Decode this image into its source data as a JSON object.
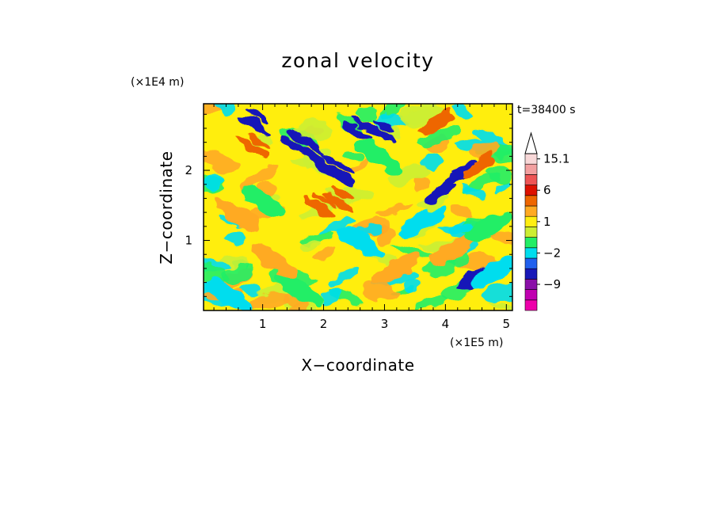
{
  "chart_data": {
    "type": "heatmap",
    "title": "zonal velocity",
    "time_label": "t=38400 s",
    "xlabel": "X−coordinate",
    "ylabel": "Z−coordinate",
    "x_unit": "(×1E5 m)",
    "y_unit": "(×1E4 m)",
    "xlim": [
      0.03,
      5.1
    ],
    "ylim": [
      0.0,
      2.95
    ],
    "x_ticks": [
      "1",
      "2",
      "3",
      "4",
      "5"
    ],
    "y_ticks": [
      "1",
      "2"
    ],
    "colorbar": {
      "levels": [
        {
          "value": -15,
          "color": "#ee00aa"
        },
        {
          "value": -12,
          "color": "#c000b0"
        },
        {
          "value": -9,
          "color": "#8a10a8"
        },
        {
          "value": -6,
          "color": "#1818b8"
        },
        {
          "value": -3,
          "color": "#2060ee"
        },
        {
          "value": -2,
          "color": "#00ddee"
        },
        {
          "value": -1,
          "color": "#22ee66"
        },
        {
          "value": 0,
          "color": "#ccee33"
        },
        {
          "value": 1,
          "color": "#ffee11"
        },
        {
          "value": 2,
          "color": "#ffaa22"
        },
        {
          "value": 4,
          "color": "#ee6600"
        },
        {
          "value": 6,
          "color": "#dd1100"
        },
        {
          "value": 9,
          "color": "#ee5555"
        },
        {
          "value": 12,
          "color": "#f3a0a0"
        },
        {
          "value": 15.1,
          "color": "#f8d8d8"
        }
      ],
      "tick_labels": [
        "15.1",
        "6",
        "1",
        "−2",
        "−9"
      ]
    },
    "features": [
      {
        "x": 1.53,
        "z": 2.35,
        "u": -6
      },
      {
        "x": 1.78,
        "z": 2.22,
        "u": -6
      },
      {
        "x": 2.06,
        "z": 2.02,
        "u": -6
      },
      {
        "x": 2.28,
        "z": 1.92,
        "u": -6
      },
      {
        "x": 2.55,
        "z": 2.55,
        "u": -6
      },
      {
        "x": 2.9,
        "z": 2.55,
        "u": -6
      },
      {
        "x": 3.9,
        "z": 1.65,
        "u": -6
      },
      {
        "x": 4.25,
        "z": 1.95,
        "u": -6
      },
      {
        "x": 0.85,
        "z": 2.65,
        "u": -6
      },
      {
        "x": 4.45,
        "z": 0.42,
        "u": -6
      },
      {
        "x": 1.95,
        "z": 1.45,
        "u": 4
      },
      {
        "x": 2.25,
        "z": 1.55,
        "u": 4
      },
      {
        "x": 0.85,
        "z": 2.32,
        "u": 4
      },
      {
        "x": 4.55,
        "z": 2.05,
        "u": 4
      },
      {
        "x": 3.85,
        "z": 2.65,
        "u": 4
      },
      {
        "x": 0.6,
        "z": 1.35,
        "u": 2
      },
      {
        "x": 1.2,
        "z": 0.7,
        "u": 2
      },
      {
        "x": 4.1,
        "z": 0.85,
        "u": 2
      },
      {
        "x": 3.2,
        "z": 0.6,
        "u": 2
      },
      {
        "x": 2.6,
        "z": 1.0,
        "u": -2
      },
      {
        "x": 3.6,
        "z": 1.25,
        "u": -2
      },
      {
        "x": 4.8,
        "z": 0.55,
        "u": -2
      },
      {
        "x": 0.45,
        "z": 0.2,
        "u": -2
      },
      {
        "x": 1.0,
        "z": 1.55,
        "u": -1
      },
      {
        "x": 4.7,
        "z": 1.2,
        "u": -1
      },
      {
        "x": 2.9,
        "z": 2.2,
        "u": -1
      },
      {
        "x": 1.6,
        "z": 0.3,
        "u": -1
      }
    ]
  }
}
